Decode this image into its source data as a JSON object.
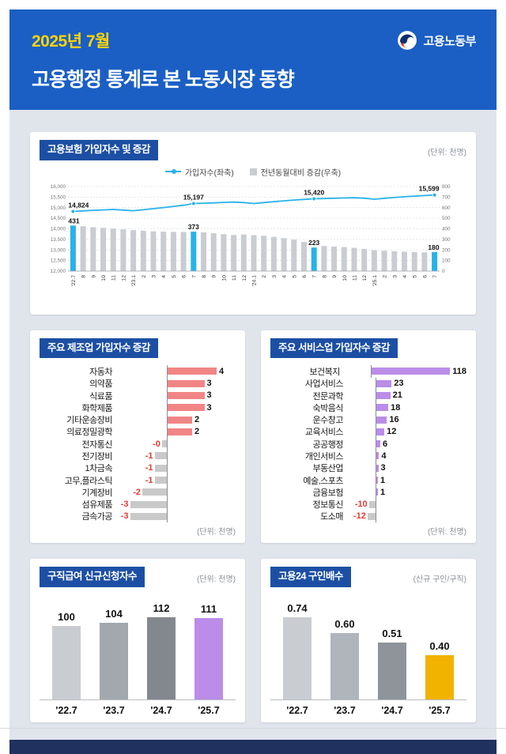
{
  "header": {
    "date": "2025년 7월",
    "title": "고용행정 통계로 본 노동시장 동향",
    "ministry": "고용노동부"
  },
  "colors": {
    "header_bg": "#1b5fc5",
    "date_yellow": "#ffd400",
    "content_bg": "#e0e4eb",
    "badge_bg": "#1c4fa4",
    "footer_bg": "#20305f",
    "line_cyan": "#29b2e8",
    "bar_gray": "#c9cdd2",
    "neg_bar_gray": "#c9c9c9",
    "mfg_positive": "#f18585",
    "svc_positive": "#bb8ce8",
    "negative_text": "#e23b30",
    "claims_colors": [
      "#c9cdd2",
      "#a3a8ae",
      "#83888e",
      "#bb8ce8"
    ],
    "ratio_colors": [
      "#c9cdd2",
      "#b0b5bb",
      "#8f949a",
      "#f2b200"
    ]
  },
  "panels": {
    "insured": {
      "title": "고용보험 가입자수 및 증감",
      "unit": "(단위: 천명)",
      "legend_line": "가입자수(좌축)",
      "legend_bar": "전년동월대비 증감(우축)"
    },
    "manufacturing": {
      "title": "주요 제조업 가입자수 증감",
      "unit": "(단위: 천명)"
    },
    "services": {
      "title": "주요 서비스업 가입자수 증감",
      "unit": "(단위: 천명)"
    },
    "claims": {
      "title": "구직급여 신규신청자수",
      "unit": "(단위: 천명)"
    },
    "ratio": {
      "title": "고용24 구인배수",
      "unit": "(신규 구인/구직)"
    }
  },
  "chart_data": [
    {
      "id": "insured",
      "type": "line",
      "title": "고용보험 가입자수 및 증감",
      "unit": "천명",
      "legend": [
        "가입자수(좌축)",
        "전년동월대비 증감(우축)"
      ],
      "x": [
        "'22.7",
        "8",
        "9",
        "10",
        "11",
        "12",
        "'23.1",
        "2",
        "3",
        "4",
        "5",
        "6",
        "7",
        "8",
        "9",
        "10",
        "11",
        "12",
        "'24.1",
        "2",
        "3",
        "4",
        "5",
        "6",
        "7",
        "8",
        "9",
        "10",
        "11",
        "12",
        "'25.1",
        "2",
        "3",
        "4",
        "5",
        "6",
        "7"
      ],
      "line_series": {
        "name": "가입자수(좌축)",
        "values": [
          14824,
          14850,
          14875,
          14895,
          14915,
          14885,
          14855,
          14900,
          14955,
          15005,
          15060,
          15115,
          15197,
          15210,
          15228,
          15248,
          15262,
          15240,
          15198,
          15240,
          15282,
          15322,
          15360,
          15392,
          15420,
          15432,
          15444,
          15458,
          15468,
          15448,
          15402,
          15440,
          15480,
          15518,
          15548,
          15572,
          15599
        ]
      },
      "bar_series": {
        "name": "전년동월대비 증감(우축)",
        "values": [
          431,
          424,
          416,
          409,
          402,
          395,
          388,
          382,
          376,
          373,
          371,
          370,
          373,
          366,
          358,
          350,
          342,
          346,
          340,
          334,
          324,
          312,
          298,
          276,
          223,
          238,
          232,
          227,
          220,
          210,
          198,
          193,
          188,
          184,
          181,
          178,
          180
        ]
      },
      "highlight_indices": [
        0,
        12,
        24,
        36
      ],
      "line_labels": [
        "14,824",
        "15,197",
        "15,420",
        "15,599"
      ],
      "bar_labels": [
        "431",
        "373",
        "223",
        "180"
      ],
      "left_axis": {
        "min": 12000,
        "max": 16000,
        "ticks": [
          "16,000",
          "15,500",
          "15,000",
          "14,500",
          "14,000",
          "13,500",
          "13,000",
          "12,500",
          "12,000"
        ]
      },
      "right_axis": {
        "min": 0,
        "max": 800,
        "ticks": [
          "800",
          "700",
          "600",
          "500",
          "400",
          "300",
          "200",
          "100",
          "0"
        ]
      }
    },
    {
      "id": "manufacturing",
      "type": "bar",
      "title": "주요 제조업 가입자수 증감",
      "unit": "천명",
      "categories": [
        "자동차",
        "의약품",
        "식료품",
        "화학제품",
        "기타운송장비",
        "의료정밀광학",
        "전자통신",
        "전기장비",
        "1차금속",
        "고무,플라스틱",
        "기계장비",
        "섬유제품",
        "금속가공"
      ],
      "values": [
        4,
        3,
        3,
        3,
        2,
        2,
        -0.4,
        -1,
        -1,
        -1,
        -2,
        -3,
        -3
      ],
      "labels": [
        "4",
        "3",
        "3",
        "3",
        "2",
        "2",
        "-0",
        "-1",
        "-1",
        "-1",
        "-2",
        "-3",
        "-3"
      ]
    },
    {
      "id": "services",
      "type": "bar",
      "title": "주요 서비스업 가입자수 증감",
      "unit": "천명",
      "categories": [
        "보건복지",
        "사업서비스",
        "전문과학",
        "숙박음식",
        "운수창고",
        "교육서비스",
        "공공행정",
        "개인서비스",
        "부동산업",
        "예술,스포츠",
        "금융보험",
        "정보통신",
        "도소매"
      ],
      "values": [
        118,
        23,
        21,
        18,
        16,
        12,
        6,
        4,
        3,
        1,
        1,
        -10,
        -12
      ],
      "labels": [
        "118",
        "23",
        "21",
        "18",
        "16",
        "12",
        "6",
        "4",
        "3",
        "1",
        "1",
        "-10",
        "-12"
      ]
    },
    {
      "id": "claims",
      "type": "bar",
      "title": "구직급여 신규신청자수",
      "unit": "천명",
      "categories": [
        "'22.7",
        "'23.7",
        "'24.7",
        "'25.7"
      ],
      "values": [
        100,
        104,
        112,
        111
      ],
      "labels": [
        "100",
        "104",
        "112",
        "111"
      ]
    },
    {
      "id": "ratio",
      "type": "bar",
      "title": "고용24 구인배수",
      "unit": "신규 구인/구직",
      "categories": [
        "'22.7",
        "'23.7",
        "'24.7",
        "'25.7"
      ],
      "values": [
        0.74,
        0.6,
        0.51,
        0.4
      ],
      "labels": [
        "0.74",
        "0.60",
        "0.51",
        "0.40"
      ]
    }
  ]
}
